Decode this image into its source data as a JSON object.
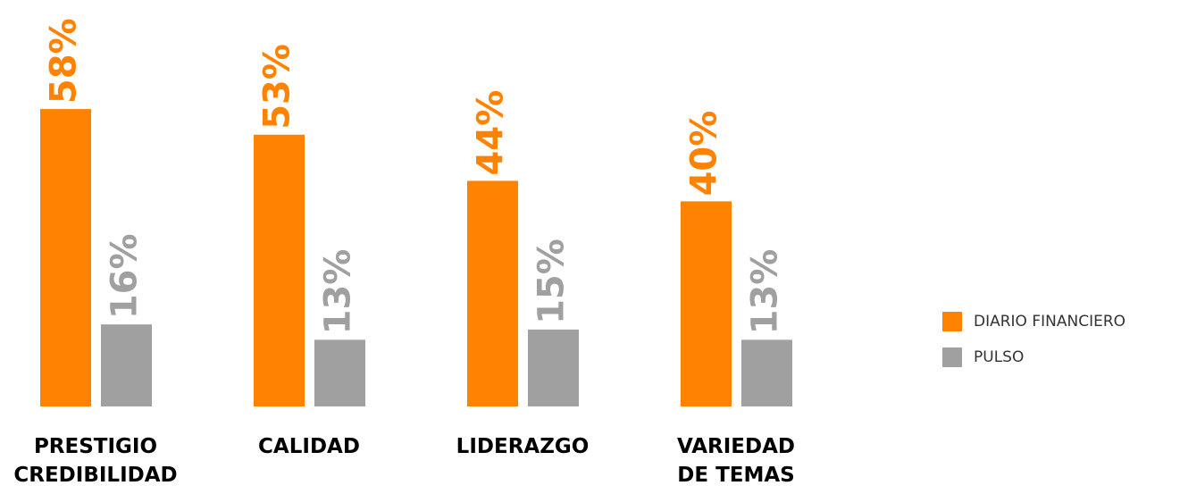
{
  "chart_data": {
    "type": "bar",
    "categories": [
      "PRESTIGIO\nCREDIBILIDAD",
      "CALIDAD",
      "LIDERAZGO",
      "VARIEDAD\nDE TEMAS"
    ],
    "series": [
      {
        "name": "DIARIO FINANCIERO",
        "color": "#ff8200",
        "values": [
          58,
          53,
          44,
          40
        ],
        "value_labels": [
          "58%",
          "53%",
          "44%",
          "40%"
        ]
      },
      {
        "name": "PULSO",
        "color": "#a0a0a0",
        "values": [
          16,
          13,
          15,
          13
        ],
        "value_labels": [
          "16%",
          "13%",
          "15%",
          "13%"
        ]
      }
    ],
    "legend": "right"
  }
}
